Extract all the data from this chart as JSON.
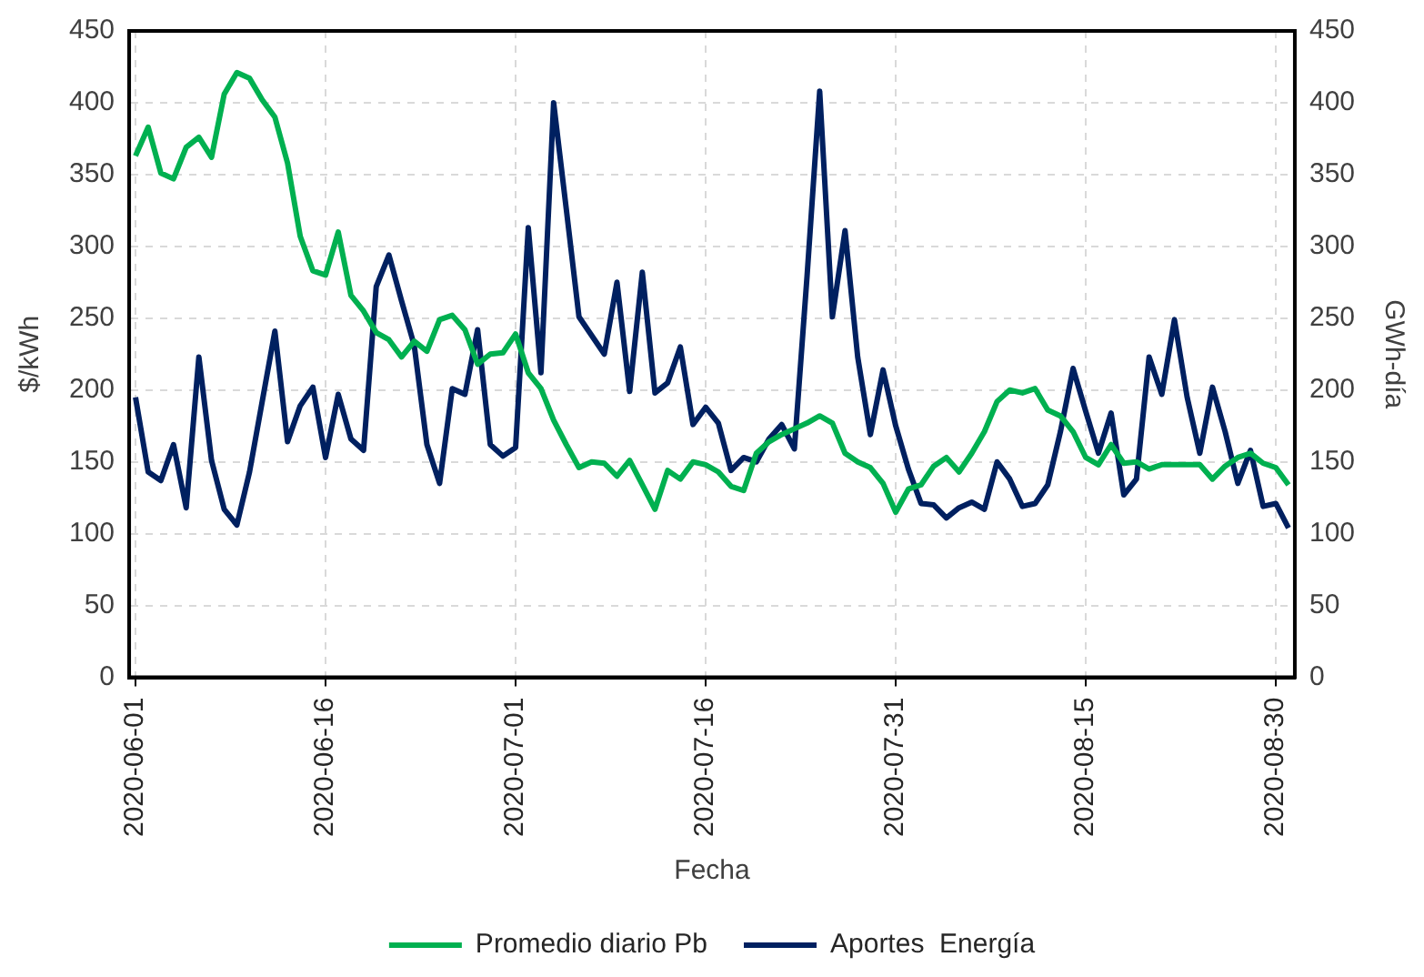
{
  "chart_data": {
    "type": "line",
    "xlabel": "Fecha",
    "ylabel": "$/kWh",
    "y2label": "GWh-día",
    "x": [
      "2020-06-01",
      "2020-06-02",
      "2020-06-03",
      "2020-06-04",
      "2020-06-05",
      "2020-06-06",
      "2020-06-07",
      "2020-06-08",
      "2020-06-09",
      "2020-06-10",
      "2020-06-11",
      "2020-06-12",
      "2020-06-13",
      "2020-06-14",
      "2020-06-15",
      "2020-06-16",
      "2020-06-17",
      "2020-06-18",
      "2020-06-19",
      "2020-06-20",
      "2020-06-21",
      "2020-06-22",
      "2020-06-23",
      "2020-06-24",
      "2020-06-25",
      "2020-06-26",
      "2020-06-27",
      "2020-06-28",
      "2020-06-29",
      "2020-06-30",
      "2020-07-01",
      "2020-07-02",
      "2020-07-03",
      "2020-07-04",
      "2020-07-05",
      "2020-07-06",
      "2020-07-07",
      "2020-07-08",
      "2020-07-09",
      "2020-07-10",
      "2020-07-11",
      "2020-07-12",
      "2020-07-13",
      "2020-07-14",
      "2020-07-15",
      "2020-07-16",
      "2020-07-17",
      "2020-07-18",
      "2020-07-19",
      "2020-07-20",
      "2020-07-21",
      "2020-07-22",
      "2020-07-23",
      "2020-07-24",
      "2020-07-25",
      "2020-07-26",
      "2020-07-27",
      "2020-07-28",
      "2020-07-29",
      "2020-07-30",
      "2020-07-31",
      "2020-08-01",
      "2020-08-02",
      "2020-08-03",
      "2020-08-04",
      "2020-08-05",
      "2020-08-06",
      "2020-08-07",
      "2020-08-08",
      "2020-08-09",
      "2020-08-10",
      "2020-08-11",
      "2020-08-12",
      "2020-08-13",
      "2020-08-14",
      "2020-08-15",
      "2020-08-16",
      "2020-08-17",
      "2020-08-18",
      "2020-08-19",
      "2020-08-20",
      "2020-08-21",
      "2020-08-22",
      "2020-08-23",
      "2020-08-24",
      "2020-08-25",
      "2020-08-26",
      "2020-08-27",
      "2020-08-28",
      "2020-08-29",
      "2020-08-30",
      "2020-08-31"
    ],
    "series": [
      {
        "name": "Promedio diario Pb",
        "color": "#00b050",
        "values": [
          363,
          383,
          351,
          347,
          369,
          376,
          362,
          406,
          421,
          417,
          402,
          390,
          358,
          307,
          283,
          280,
          310,
          266,
          255,
          240,
          235,
          223,
          234,
          227,
          249,
          252,
          242,
          218,
          225,
          226,
          239,
          212,
          201,
          179,
          162,
          146,
          150,
          149,
          140,
          151,
          134,
          117,
          144,
          138,
          150,
          148,
          143,
          133,
          130,
          156,
          164,
          169,
          173,
          177,
          182,
          177,
          156,
          150,
          146,
          135,
          115,
          131,
          134,
          147,
          153,
          143,
          156,
          171,
          192,
          200,
          198,
          201,
          186,
          182,
          171,
          153,
          148,
          162,
          149,
          150,
          145,
          148,
          148,
          148,
          148,
          138,
          147,
          153,
          156,
          149,
          146,
          134
        ]
      },
      {
        "name": "Aportes  Energía",
        "color": "#002060",
        "axis": "y2",
        "values": [
          195,
          143,
          137,
          162,
          118,
          223,
          151,
          117,
          106,
          143,
          192,
          241,
          164,
          189,
          202,
          153,
          197,
          166,
          158,
          272,
          294,
          262,
          231,
          162,
          135,
          201,
          197,
          242,
          162,
          154,
          160,
          313,
          212,
          400,
          326,
          251,
          238,
          225,
          275,
          199,
          282,
          198,
          205,
          230,
          176,
          188,
          177,
          144,
          153,
          150,
          166,
          176,
          159,
          279,
          408,
          251,
          311,
          223,
          169,
          214,
          175,
          145,
          121,
          120,
          111,
          118,
          122,
          117,
          150,
          138,
          119,
          121,
          134,
          171,
          215,
          185,
          156,
          184,
          127,
          138,
          223,
          197,
          249,
          195,
          156,
          202,
          171,
          135,
          158,
          119,
          121,
          104
        ]
      }
    ],
    "xlim": [
      "2020-05-31T12:00",
      "2020-08-31T12:00"
    ],
    "xticks": [
      "2020-06-01",
      "2020-06-16",
      "2020-07-01",
      "2020-07-16",
      "2020-07-31",
      "2020-08-15",
      "2020-08-30"
    ],
    "ylim": [
      0,
      450
    ],
    "yticks": [
      0,
      50,
      100,
      150,
      200,
      250,
      300,
      350,
      400,
      450
    ],
    "y2lim": [
      0,
      450
    ],
    "y2ticks": [
      0,
      50,
      100,
      150,
      200,
      250,
      300,
      350,
      400,
      450
    ],
    "grid": true,
    "legend": "bottom",
    "marker": "none",
    "line_style": "solid"
  }
}
